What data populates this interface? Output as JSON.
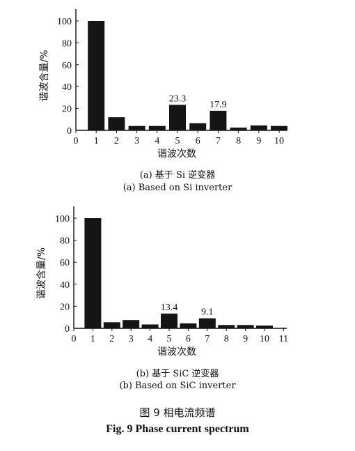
{
  "chart_data": [
    {
      "type": "bar",
      "xlabel": "谐波次数",
      "ylabel": "谐波含量/%",
      "ylim": [
        0,
        100
      ],
      "yticks": [
        0,
        20,
        40,
        60,
        80,
        100
      ],
      "xticks": [
        "0",
        "1",
        "2",
        "3",
        "4",
        "5",
        "6",
        "7",
        "8",
        "9",
        "10"
      ],
      "categories": [
        1,
        2,
        3,
        4,
        5,
        6,
        7,
        8,
        9,
        10
      ],
      "values": [
        100,
        12,
        4,
        4,
        23.3,
        6.5,
        17.9,
        2.5,
        4.5,
        4
      ],
      "annotations": [
        {
          "category": 5,
          "text": "23.3"
        },
        {
          "category": 7,
          "text": "17.9"
        }
      ],
      "caption_cn": "(a)  基于 Si 逆变器",
      "caption_en": "(a) Based on Si inverter"
    },
    {
      "type": "bar",
      "xlabel": "谐波次数",
      "ylabel": "谐波含量/%",
      "ylim": [
        0,
        100
      ],
      "yticks": [
        0,
        20,
        40,
        60,
        80,
        100
      ],
      "xticks": [
        "0",
        "1",
        "2",
        "3",
        "4",
        "5",
        "6",
        "7",
        "8",
        "9",
        "10",
        "11"
      ],
      "categories": [
        1,
        2,
        3,
        4,
        5,
        6,
        7,
        8,
        9,
        10
      ],
      "values": [
        100,
        5.5,
        7.5,
        3.5,
        13.4,
        4.5,
        9.1,
        3,
        3,
        2.5
      ],
      "annotations": [
        {
          "category": 5,
          "text": "13.4"
        },
        {
          "category": 7,
          "text": "9.1"
        }
      ],
      "caption_cn": "(b)  基于 SiC 逆变器",
      "caption_en": "(b) Based on SiC inverter"
    }
  ],
  "figure": {
    "caption_cn": "图 9  相电流频谱",
    "caption_en": "Fig. 9 Phase current spectrum"
  },
  "colors": {
    "bar": "#151515",
    "axis": "#111111"
  }
}
